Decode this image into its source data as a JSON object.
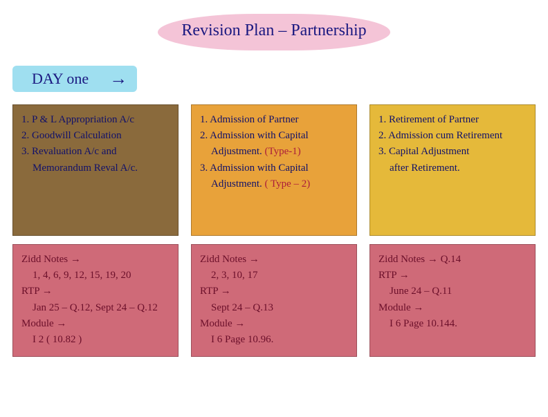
{
  "title": {
    "text": "Revision Plan – Partnership",
    "bg": "#f4c4d7",
    "color": "#1a1880",
    "fontsize": 24
  },
  "day_label": {
    "text": "DAY one",
    "arrow": "→",
    "bg": "#9fdff0",
    "color": "#1a1880",
    "fontsize": 22
  },
  "topic_cards": [
    {
      "bg": "#8a6a3c",
      "text_color": "#10106a",
      "lines": [
        "1. P & L Appropriation A/c",
        "2. Goodwill Calculation",
        "3. Revaluation A/c and",
        "   Memorandum Reval A/c."
      ]
    },
    {
      "bg": "#e8a23a",
      "text_color": "#10106a",
      "lines": [
        "1. Admission of Partner",
        "2. Admission with Capital",
        "   Adjustment.",
        "3. Admission with Capital",
        "   Adjustment."
      ],
      "annot1": {
        "text": "(Type-1)",
        "color": "#ab1d3a"
      },
      "annot2": {
        "text": "( Type – 2)",
        "color": "#ab1d3a"
      }
    },
    {
      "bg": "#e5b93a",
      "text_color": "#10106a",
      "lines": [
        "1. Retirement of Partner",
        "2. Admission cum Retirement",
        "3. Capital Adjustment",
        "   after Retirement."
      ]
    }
  ],
  "ref_cards": [
    {
      "bg": "#cf6a78",
      "text_color": "#6b0f2a",
      "zidd_label": "Zidd Notes →",
      "zidd_values": "1, 4, 6, 9, 12, 15, 19, 20",
      "rtp_label": "RTP →",
      "rtp_values": "Jan 25 – Q.12, Sept 24 – Q.12",
      "module_label": "Module →",
      "module_values": "I 2 ( 10.82 )"
    },
    {
      "bg": "#cf6a78",
      "text_color": "#6b0f2a",
      "zidd_label": "Zidd Notes →",
      "zidd_values": "2, 3, 10, 17",
      "rtp_label": "RTP →",
      "rtp_values": "Sept 24 – Q.13",
      "module_label": "Module →",
      "module_values": "I 6  Page 10.96."
    },
    {
      "bg": "#cf6a78",
      "text_color": "#6b0f2a",
      "zidd_label": "Zidd Notes →",
      "zidd_values": "Q.14",
      "rtp_label": "RTP →",
      "rtp_values": "June 24 – Q.11",
      "module_label": "Module →",
      "module_values": "I 6  Page 10.144."
    }
  ]
}
